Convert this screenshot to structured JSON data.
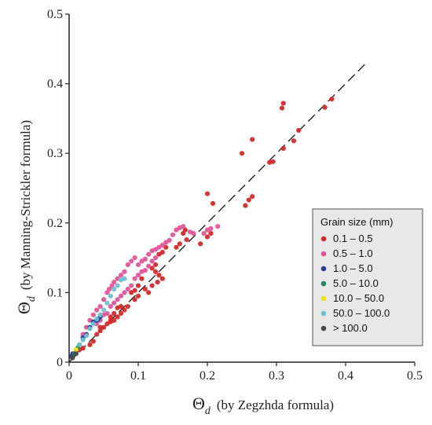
{
  "chart_data": {
    "type": "scatter",
    "xlabel": {
      "symbol": "Θ",
      "subscript": "d",
      "text": "(by Zegzhda formula)"
    },
    "ylabel": {
      "symbol": "Θ",
      "subscript": "d",
      "text": "(by Manning-Strickler formula)"
    },
    "xlim": [
      0,
      0.5
    ],
    "ylim": [
      0,
      0.5
    ],
    "xticks": [
      "0",
      "0.1",
      "0.2",
      "0.3",
      "0.4",
      "0.5"
    ],
    "yticks": [
      "0",
      "0.1",
      "0.2",
      "0.3",
      "0.4",
      "0.5"
    ],
    "grid": false,
    "legend": {
      "title": "Grain size (mm)",
      "position": "right"
    },
    "reference_line": {
      "style": "dashed",
      "x": [
        0,
        0.43
      ],
      "y": [
        0,
        0.43
      ]
    },
    "series": [
      {
        "name": "0.1 – 0.5",
        "color": "#d42a2a",
        "points": [
          [
            0.38,
            0.378
          ],
          [
            0.37,
            0.366
          ],
          [
            0.31,
            0.372
          ],
          [
            0.308,
            0.365
          ],
          [
            0.332,
            0.333
          ],
          [
            0.325,
            0.318
          ],
          [
            0.31,
            0.307
          ],
          [
            0.265,
            0.32
          ],
          [
            0.295,
            0.288
          ],
          [
            0.29,
            0.287
          ],
          [
            0.25,
            0.3
          ],
          [
            0.2,
            0.242
          ],
          [
            0.208,
            0.228
          ],
          [
            0.265,
            0.238
          ],
          [
            0.26,
            0.233
          ],
          [
            0.255,
            0.225
          ],
          [
            0.205,
            0.185
          ],
          [
            0.2,
            0.18
          ],
          [
            0.19,
            0.17
          ],
          [
            0.17,
            0.176
          ],
          [
            0.168,
            0.19
          ],
          [
            0.165,
            0.185
          ],
          [
            0.16,
            0.17
          ],
          [
            0.155,
            0.165
          ],
          [
            0.14,
            0.165
          ],
          [
            0.135,
            0.158
          ],
          [
            0.13,
            0.155
          ],
          [
            0.135,
            0.12
          ],
          [
            0.13,
            0.125
          ],
          [
            0.125,
            0.13
          ],
          [
            0.12,
            0.11
          ],
          [
            0.115,
            0.1
          ],
          [
            0.11,
            0.105
          ],
          [
            0.1,
            0.095
          ],
          [
            0.095,
            0.09
          ],
          [
            0.085,
            0.08
          ],
          [
            0.08,
            0.075
          ],
          [
            0.075,
            0.07
          ],
          [
            0.07,
            0.065
          ],
          [
            0.065,
            0.06
          ],
          [
            0.06,
            0.058
          ],
          [
            0.055,
            0.055
          ],
          [
            0.05,
            0.05
          ],
          [
            0.045,
            0.045
          ],
          [
            0.04,
            0.04
          ],
          [
            0.035,
            0.03
          ],
          [
            0.03,
            0.025
          ],
          [
            0.02,
            0.02
          ],
          [
            0.015,
            0.018
          ],
          [
            0.1,
            0.11
          ],
          [
            0.09,
            0.1
          ],
          [
            0.095,
            0.103
          ],
          [
            0.12,
            0.135
          ],
          [
            0.125,
            0.14
          ],
          [
            0.128,
            0.115
          ],
          [
            0.105,
            0.12
          ],
          [
            0.06,
            0.06
          ],
          [
            0.065,
            0.07
          ],
          [
            0.07,
            0.078
          ],
          [
            0.075,
            0.08
          ],
          [
            0.06,
            0.065
          ],
          [
            0.045,
            0.05
          ]
        ]
      },
      {
        "name": "0.5 – 1.0",
        "color": "#e0559a",
        "points": [
          [
            0.215,
            0.195
          ],
          [
            0.205,
            0.192
          ],
          [
            0.2,
            0.19
          ],
          [
            0.195,
            0.185
          ],
          [
            0.18,
            0.185
          ],
          [
            0.175,
            0.187
          ],
          [
            0.165,
            0.195
          ],
          [
            0.16,
            0.193
          ],
          [
            0.155,
            0.19
          ],
          [
            0.15,
            0.183
          ],
          [
            0.145,
            0.175
          ],
          [
            0.14,
            0.172
          ],
          [
            0.135,
            0.168
          ],
          [
            0.13,
            0.165
          ],
          [
            0.125,
            0.162
          ],
          [
            0.12,
            0.16
          ],
          [
            0.115,
            0.155
          ],
          [
            0.11,
            0.148
          ],
          [
            0.105,
            0.145
          ],
          [
            0.1,
            0.14
          ],
          [
            0.095,
            0.15
          ],
          [
            0.09,
            0.145
          ],
          [
            0.085,
            0.14
          ],
          [
            0.08,
            0.13
          ],
          [
            0.075,
            0.125
          ],
          [
            0.07,
            0.12
          ],
          [
            0.065,
            0.115
          ],
          [
            0.062,
            0.11
          ],
          [
            0.058,
            0.105
          ],
          [
            0.055,
            0.1
          ],
          [
            0.05,
            0.09
          ],
          [
            0.045,
            0.08
          ],
          [
            0.04,
            0.075
          ],
          [
            0.035,
            0.068
          ],
          [
            0.03,
            0.06
          ],
          [
            0.025,
            0.05
          ],
          [
            0.02,
            0.04
          ],
          [
            0.1,
            0.125
          ],
          [
            0.105,
            0.13
          ],
          [
            0.095,
            0.12
          ],
          [
            0.09,
            0.11
          ],
          [
            0.085,
            0.105
          ],
          [
            0.08,
            0.1
          ],
          [
            0.075,
            0.095
          ],
          [
            0.07,
            0.09
          ],
          [
            0.065,
            0.085
          ],
          [
            0.06,
            0.08
          ],
          [
            0.055,
            0.07
          ],
          [
            0.05,
            0.068
          ],
          [
            0.045,
            0.06
          ],
          [
            0.04,
            0.055
          ],
          [
            0.11,
            0.132
          ],
          [
            0.115,
            0.138
          ],
          [
            0.12,
            0.145
          ],
          [
            0.125,
            0.15
          ]
        ]
      },
      {
        "name": "1.0 – 5.0",
        "color": "#2a3f9a",
        "points": [
          [
            0.045,
            0.065
          ],
          [
            0.04,
            0.06
          ],
          [
            0.035,
            0.058
          ],
          [
            0.03,
            0.05
          ],
          [
            0.025,
            0.04
          ],
          [
            0.02,
            0.035
          ],
          [
            0.005,
            0.012
          ],
          [
            0.003,
            0.008
          ],
          [
            0.01,
            0.015
          ],
          [
            0.042,
            0.062
          ]
        ]
      },
      {
        "name": "5.0 – 10.0",
        "color": "#1f8a5a",
        "points": [
          [
            0.015,
            0.025
          ],
          [
            0.012,
            0.02
          ],
          [
            0.008,
            0.012
          ]
        ]
      },
      {
        "name": "10.0 – 50.0",
        "color": "#f2e21a",
        "points": [
          [
            0.01,
            0.018
          ]
        ]
      },
      {
        "name": "50.0 – 100.0",
        "color": "#6cc0cf",
        "points": [
          [
            0.08,
            0.12
          ],
          [
            0.075,
            0.118
          ],
          [
            0.07,
            0.11
          ],
          [
            0.065,
            0.105
          ],
          [
            0.06,
            0.095
          ],
          [
            0.055,
            0.085
          ],
          [
            0.05,
            0.075
          ],
          [
            0.045,
            0.068
          ],
          [
            0.04,
            0.062
          ],
          [
            0.035,
            0.055
          ],
          [
            0.03,
            0.048
          ],
          [
            0.025,
            0.038
          ],
          [
            0.02,
            0.032
          ],
          [
            0.015,
            0.025
          ]
        ]
      },
      {
        "name": "> 100.0",
        "color": "#4a4a4a",
        "points": [
          [
            0.01,
            0.012
          ],
          [
            0.005,
            0.006
          ]
        ]
      }
    ]
  }
}
